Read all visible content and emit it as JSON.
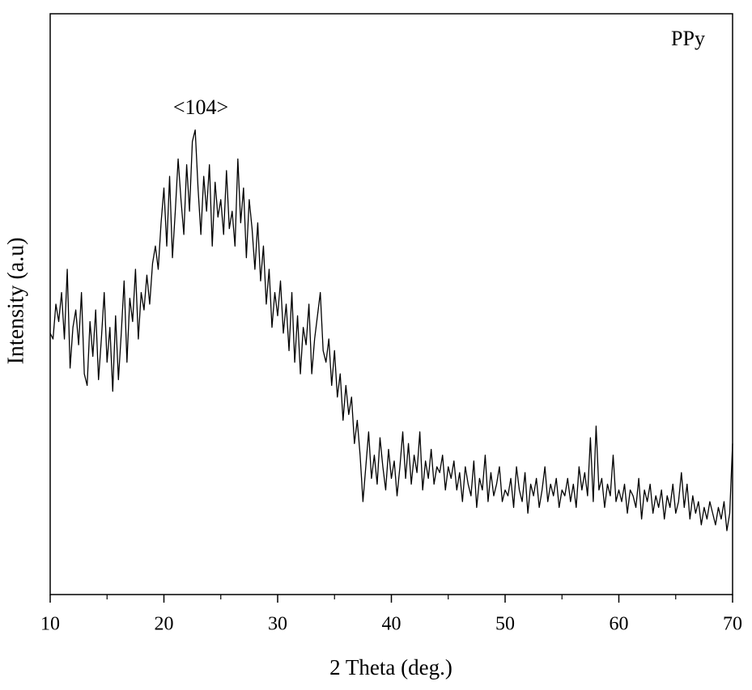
{
  "chart_data": {
    "type": "line",
    "title": "PPy",
    "annotation": "<104>",
    "x_label": "2 Theta (deg.)",
    "y_label": "Intensity (a.u)",
    "xlim": [
      10,
      70
    ],
    "xticks": [
      10,
      20,
      30,
      40,
      50,
      60,
      70
    ],
    "xminorticks": [
      15,
      25,
      35,
      45,
      55,
      65
    ],
    "ylim": [
      0,
      100
    ],
    "color": "#000000",
    "x": [
      10,
      10.25,
      10.5,
      10.75,
      11,
      11.25,
      11.5,
      11.75,
      12,
      12.25,
      12.5,
      12.75,
      13,
      13.25,
      13.5,
      13.75,
      14,
      14.25,
      14.5,
      14.75,
      15,
      15.25,
      15.5,
      15.75,
      16,
      16.25,
      16.5,
      16.75,
      17,
      17.25,
      17.5,
      17.75,
      18,
      18.25,
      18.5,
      18.75,
      19,
      19.25,
      19.5,
      19.75,
      20,
      20.25,
      20.5,
      20.75,
      21,
      21.25,
      21.5,
      21.75,
      22,
      22.25,
      22.5,
      22.75,
      23,
      23.25,
      23.5,
      23.75,
      24,
      24.25,
      24.5,
      24.75,
      25,
      25.25,
      25.5,
      25.75,
      26,
      26.25,
      26.5,
      26.75,
      27,
      27.25,
      27.5,
      27.75,
      28,
      28.25,
      28.5,
      28.75,
      29,
      29.25,
      29.5,
      29.75,
      30,
      30.25,
      30.5,
      30.75,
      31,
      31.25,
      31.5,
      31.75,
      32,
      32.25,
      32.5,
      32.75,
      33,
      33.25,
      33.5,
      33.75,
      34,
      34.25,
      34.5,
      34.75,
      35,
      35.25,
      35.5,
      35.75,
      36,
      36.25,
      36.5,
      36.75,
      37,
      37.25,
      37.5,
      37.75,
      38,
      38.25,
      38.5,
      38.75,
      39,
      39.25,
      39.5,
      39.75,
      40,
      40.25,
      40.5,
      40.75,
      41,
      41.25,
      41.5,
      41.75,
      42,
      42.25,
      42.5,
      42.75,
      43,
      43.25,
      43.5,
      43.75,
      44,
      44.25,
      44.5,
      44.75,
      45,
      45.25,
      45.5,
      45.75,
      46,
      46.25,
      46.5,
      46.75,
      47,
      47.25,
      47.5,
      47.75,
      48,
      48.25,
      48.5,
      48.75,
      49,
      49.25,
      49.5,
      49.75,
      50,
      50.25,
      50.5,
      50.75,
      51,
      51.25,
      51.5,
      51.75,
      52,
      52.25,
      52.5,
      52.75,
      53,
      53.25,
      53.5,
      53.75,
      54,
      54.25,
      54.5,
      54.75,
      55,
      55.25,
      55.5,
      55.75,
      56,
      56.25,
      56.5,
      56.75,
      57,
      57.25,
      57.5,
      57.75,
      58,
      58.25,
      58.5,
      58.75,
      59,
      59.25,
      59.5,
      59.75,
      60,
      60.25,
      60.5,
      60.75,
      61,
      61.25,
      61.5,
      61.75,
      62,
      62.25,
      62.5,
      62.75,
      63,
      63.25,
      63.5,
      63.75,
      64,
      64.25,
      64.5,
      64.75,
      65,
      65.25,
      65.5,
      65.75,
      66,
      66.25,
      66.5,
      66.75,
      67,
      67.25,
      67.5,
      67.75,
      68,
      68.25,
      68.5,
      68.75,
      69,
      69.25,
      69.5,
      69.75,
      70
    ],
    "values": [
      45,
      44,
      50,
      47,
      52,
      44,
      56,
      39,
      46,
      49,
      43,
      52,
      38,
      36,
      47,
      41,
      49,
      37,
      44,
      52,
      40,
      46,
      35,
      48,
      37,
      45,
      54,
      40,
      51,
      47,
      56,
      44,
      52,
      49,
      55,
      50,
      57,
      60,
      56,
      64,
      70,
      60,
      72,
      58,
      66,
      75,
      68,
      62,
      74,
      66,
      78,
      80,
      70,
      62,
      72,
      66,
      74,
      60,
      71,
      65,
      68,
      62,
      73,
      63,
      66,
      60,
      75,
      64,
      70,
      58,
      68,
      63,
      56,
      64,
      54,
      60,
      50,
      56,
      46,
      52,
      48,
      54,
      45,
      50,
      42,
      52,
      40,
      48,
      38,
      46,
      43,
      50,
      38,
      44,
      48,
      52,
      42,
      40,
      44,
      36,
      42,
      34,
      38,
      30,
      36,
      31,
      34,
      26,
      30,
      24,
      16,
      22,
      28,
      20,
      24,
      19,
      27,
      22,
      18,
      25,
      20,
      23,
      17,
      22,
      28,
      20,
      26,
      19,
      24,
      21,
      28,
      18,
      23,
      20,
      25,
      19,
      22,
      21,
      24,
      18,
      22,
      20,
      23,
      18,
      21,
      16,
      22,
      19,
      17,
      23,
      15,
      20,
      18,
      24,
      16,
      21,
      17,
      19,
      22,
      16,
      18,
      17,
      20,
      15,
      22,
      18,
      16,
      21,
      14,
      19,
      17,
      20,
      15,
      18,
      22,
      16,
      19,
      17,
      20,
      15,
      18,
      17,
      20,
      16,
      19,
      15,
      22,
      18,
      21,
      17,
      27,
      16,
      29,
      18,
      20,
      15,
      19,
      17,
      24,
      16,
      18,
      16,
      19,
      14,
      18,
      17,
      15,
      20,
      13,
      18,
      16,
      19,
      14,
      17,
      15,
      18,
      13,
      17,
      15,
      19,
      14,
      16,
      21,
      15,
      19,
      13,
      17,
      14,
      16,
      12,
      15,
      13,
      16,
      14,
      12,
      15,
      13,
      16,
      11,
      14,
      26
    ]
  }
}
